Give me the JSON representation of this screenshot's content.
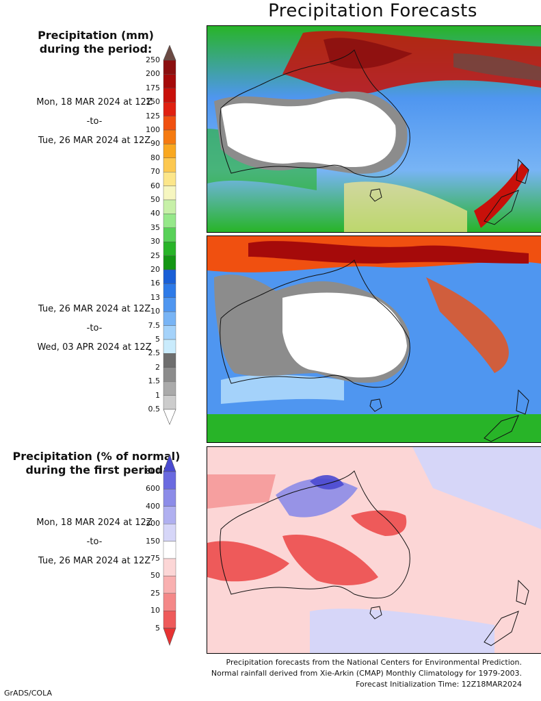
{
  "title": "Precipitation Forecasts",
  "precip_heading": {
    "line1": "Precipitation (mm)",
    "line2": "during the period:"
  },
  "period1": {
    "start": "Mon, 18 MAR 2024 at 12Z",
    "sep": "-to-",
    "end": "Tue, 26 MAR 2024 at 12Z"
  },
  "period2": {
    "start": "Tue, 26 MAR 2024 at 12Z",
    "sep": "-to-",
    "end": "Wed, 03 APR 2024 at 12Z"
  },
  "percent_heading": {
    "line1": "Precipitation (% of normal)",
    "line2": "during the first period:"
  },
  "period3": {
    "start": "Mon, 18 MAR 2024 at 12Z",
    "sep": "-to-",
    "end": "Tue, 26 MAR 2024 at 12Z"
  },
  "mm_scale": {
    "labels": [
      "250",
      "200",
      "175",
      "150",
      "125",
      "100",
      "90",
      "80",
      "70",
      "60",
      "50",
      "40",
      "35",
      "30",
      "25",
      "20",
      "16",
      "13",
      "10",
      "7.5",
      "5",
      "2.5",
      "2",
      "1.5",
      "1",
      "0.5"
    ],
    "colors": [
      "#6b4a43",
      "#8b0f0f",
      "#a50a0a",
      "#c8100a",
      "#e02010",
      "#f05010",
      "#f57a10",
      "#f9a820",
      "#fcc850",
      "#fce68a",
      "#f6f6c0",
      "#c7f0a8",
      "#96e88a",
      "#58d158",
      "#28b428",
      "#149614",
      "#1a5fd6",
      "#2d7ae8",
      "#4f96f0",
      "#78b4f5",
      "#a4d2fa",
      "#c9ebfc",
      "#6e6e6e",
      "#8c8c8c",
      "#aaaaaa",
      "#cccccc",
      "#ffffff"
    ]
  },
  "pct_scale": {
    "labels": [
      "800",
      "600",
      "400",
      "300",
      "150",
      "75",
      "50",
      "25",
      "10",
      "5"
    ],
    "colors": [
      "#4a4ad0",
      "#6a6ae0",
      "#8c8ce8",
      "#b0b0f0",
      "#d6d6f8",
      "#ffffff",
      "#fcd6d6",
      "#f9b0b0",
      "#f48888",
      "#ee5a5a",
      "#e63232"
    ]
  },
  "footer": {
    "line1": "Precipitation forecasts from the National Centers for Environmental Prediction.",
    "line2": "Normal rainfall derived from Xie-Arkin (CMAP) Monthly Climatology for 1979-2003.",
    "line3": "Forecast Initialization Time: 12Z18MAR2024"
  },
  "credit": "GrADS/COLA"
}
